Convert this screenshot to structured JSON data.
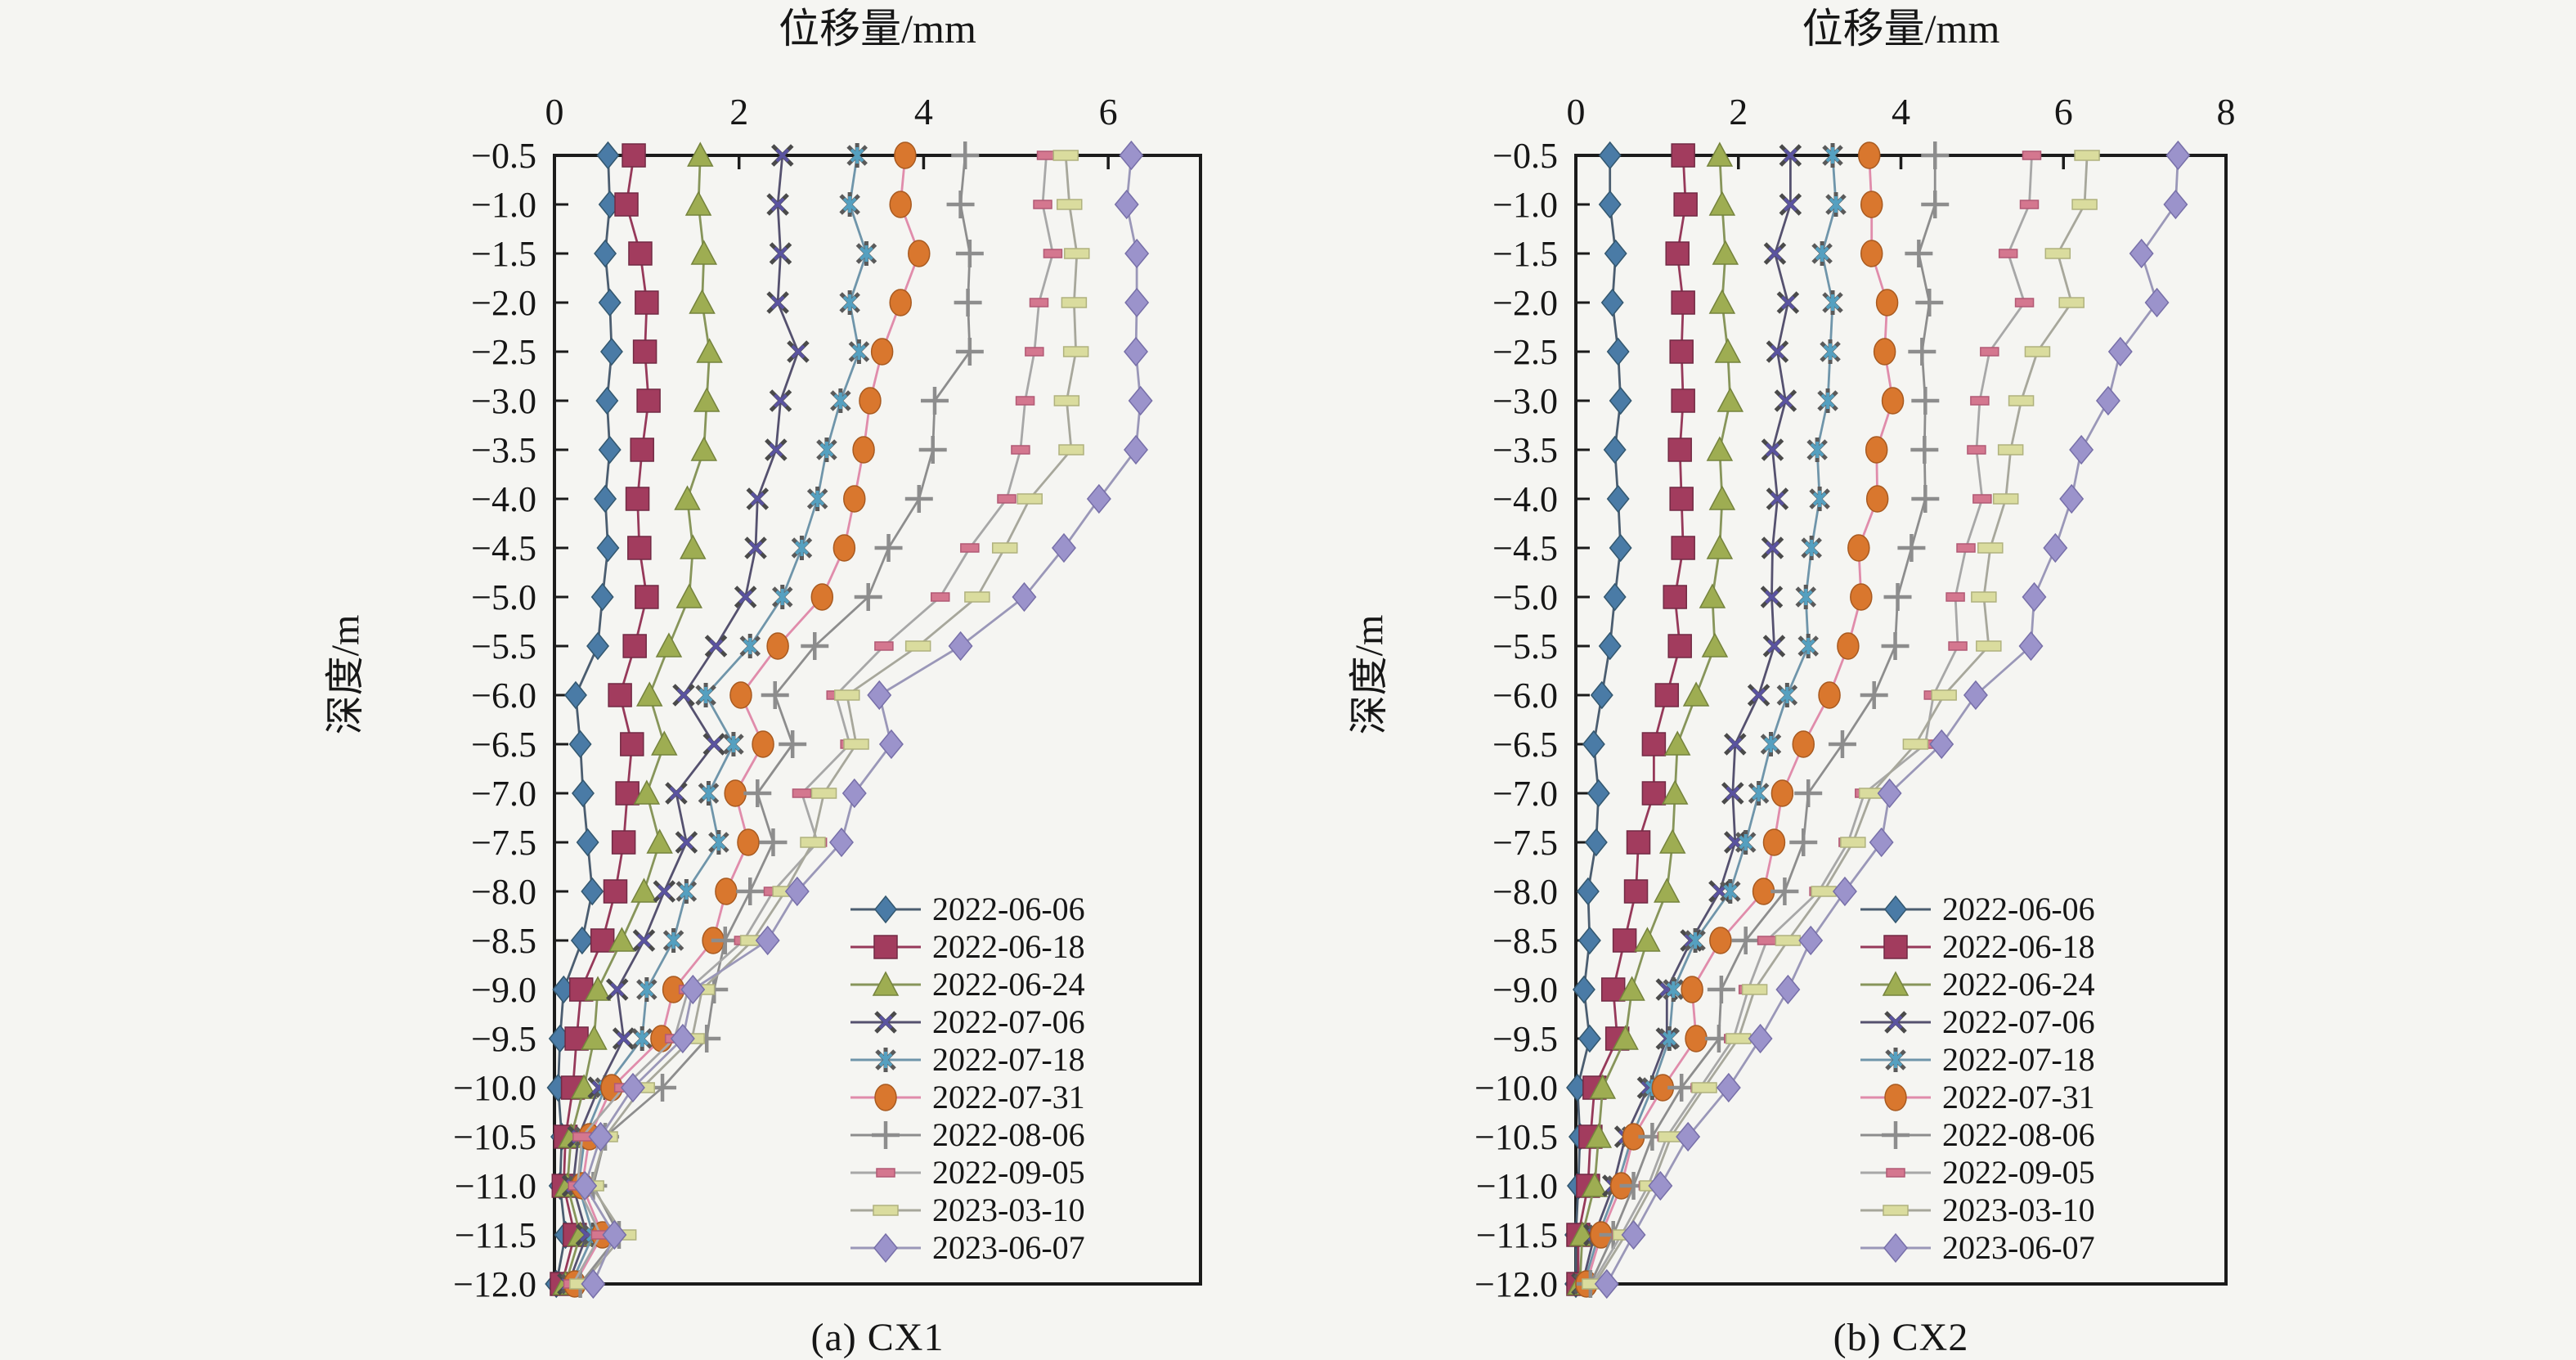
{
  "page": {
    "background": "#f5f5f2",
    "text_color": "#161616",
    "axis_color": "#1b1b1b"
  },
  "chart_data": [
    {
      "id": "cx1",
      "type": "line",
      "caption": "(a) CX1",
      "xlabel": "位移量/mm",
      "ylabel": "深度/m",
      "xlim": [
        0,
        7
      ],
      "x_ticks": [
        0,
        2,
        4,
        6
      ],
      "ylim": [
        -12.0,
        -0.5
      ],
      "grid": false,
      "legend_position": "inside-bottom-right",
      "depths": [
        -0.5,
        -1.0,
        -1.5,
        -2.0,
        -2.5,
        -3.0,
        -3.5,
        -4.0,
        -4.5,
        -5.0,
        -5.5,
        -6.0,
        -6.5,
        -7.0,
        -7.5,
        -8.0,
        -8.5,
        -9.0,
        -9.5,
        -10.0,
        -10.5,
        -11.0,
        -11.5,
        -12.0
      ],
      "series": [
        {
          "name": "2022-06-06",
          "marker": "diamond",
          "color": "#4a7ba6",
          "edge": "#33576f",
          "line": "#4b5d70",
          "values": [
            0.58,
            0.6,
            0.55,
            0.6,
            0.62,
            0.57,
            0.6,
            0.55,
            0.58,
            0.52,
            0.47,
            0.23,
            0.28,
            0.31,
            0.36,
            0.41,
            0.3,
            0.1,
            0.06,
            0.04,
            0.08,
            0.06,
            0.12,
            0.02
          ]
        },
        {
          "name": "2022-06-18",
          "marker": "square",
          "color": "#a23c5e",
          "edge": "#722a44",
          "line": "#96395a",
          "values": [
            0.86,
            0.78,
            0.93,
            1.0,
            0.98,
            1.02,
            0.95,
            0.9,
            0.92,
            1.0,
            0.87,
            0.71,
            0.84,
            0.79,
            0.75,
            0.66,
            0.52,
            0.29,
            0.24,
            0.2,
            0.12,
            0.1,
            0.22,
            0.08
          ]
        },
        {
          "name": "2022-06-24",
          "marker": "triangle",
          "color": "#9ead52",
          "edge": "#75833d",
          "line": "#87955a",
          "values": [
            1.58,
            1.56,
            1.62,
            1.6,
            1.68,
            1.65,
            1.62,
            1.44,
            1.5,
            1.46,
            1.24,
            1.03,
            1.19,
            1.0,
            1.14,
            0.97,
            0.73,
            0.47,
            0.43,
            0.32,
            0.18,
            0.14,
            0.28,
            0.12
          ]
        },
        {
          "name": "2022-07-06",
          "marker": "xmark",
          "color": "#5a53a0",
          "edge": "#444444",
          "line": "#55516f",
          "values": [
            2.47,
            2.42,
            2.45,
            2.42,
            2.64,
            2.45,
            2.4,
            2.2,
            2.18,
            2.07,
            1.75,
            1.4,
            1.73,
            1.32,
            1.43,
            1.19,
            0.97,
            0.68,
            0.75,
            0.48,
            0.26,
            0.2,
            0.35,
            0.15
          ]
        },
        {
          "name": "2022-07-18",
          "marker": "asterisk",
          "color": "#55a0c0",
          "edge": "#555555",
          "line": "#6f95aa",
          "values": [
            3.28,
            3.2,
            3.38,
            3.2,
            3.3,
            3.1,
            2.95,
            2.85,
            2.68,
            2.47,
            2.12,
            1.64,
            1.94,
            1.67,
            1.78,
            1.43,
            1.29,
            1.0,
            0.95,
            0.55,
            0.33,
            0.26,
            0.42,
            0.18
          ]
        },
        {
          "name": "2022-07-31",
          "marker": "circle",
          "color": "#d9772e",
          "edge": "#a85a20",
          "line": "#e08cab",
          "values": [
            3.8,
            3.75,
            3.95,
            3.75,
            3.55,
            3.42,
            3.35,
            3.25,
            3.14,
            2.9,
            2.42,
            2.02,
            2.26,
            1.96,
            2.1,
            1.86,
            1.72,
            1.29,
            1.16,
            0.62,
            0.38,
            0.3,
            0.52,
            0.22
          ]
        },
        {
          "name": "2022-08-06",
          "marker": "plus",
          "color": "#8d8d8d",
          "edge": "#777777",
          "line": "#8d8d8d",
          "values": [
            4.45,
            4.4,
            4.5,
            4.48,
            4.5,
            4.12,
            4.1,
            3.95,
            3.62,
            3.4,
            2.82,
            2.39,
            2.58,
            2.2,
            2.37,
            2.12,
            1.85,
            1.73,
            1.65,
            1.17,
            0.55,
            0.42,
            0.7,
            0.28
          ]
        },
        {
          "name": "2022-09-05",
          "marker": "dash-small",
          "color": "#d4778f",
          "edge": "#b25a75",
          "line": "#a7a7a7",
          "values": [
            5.33,
            5.29,
            5.4,
            5.25,
            5.2,
            5.1,
            5.05,
            4.9,
            4.5,
            4.18,
            3.57,
            3.05,
            3.2,
            2.68,
            2.85,
            2.37,
            2.05,
            1.45,
            1.3,
            0.75,
            0.3,
            0.25,
            0.5,
            0.2
          ]
        },
        {
          "name": "2023-03-10",
          "marker": "dash-large",
          "color": "#dadc9e",
          "edge": "#b0b27e",
          "line": "#a7a79b",
          "values": [
            5.54,
            5.58,
            5.66,
            5.63,
            5.65,
            5.55,
            5.6,
            5.15,
            4.88,
            4.58,
            3.94,
            3.17,
            3.27,
            2.92,
            2.8,
            2.5,
            2.15,
            1.6,
            1.49,
            0.95,
            0.55,
            0.4,
            0.75,
            0.3
          ]
        },
        {
          "name": "2023-06-07",
          "marker": "diamond-lg",
          "color": "#9b93cb",
          "edge": "#776fa8",
          "line": "#9a97b8",
          "values": [
            6.25,
            6.2,
            6.31,
            6.31,
            6.3,
            6.35,
            6.3,
            5.9,
            5.52,
            5.09,
            4.4,
            3.52,
            3.65,
            3.25,
            3.11,
            2.63,
            2.31,
            1.5,
            1.39,
            0.85,
            0.5,
            0.33,
            0.65,
            0.42
          ]
        }
      ]
    },
    {
      "id": "cx2",
      "type": "line",
      "caption": "(b) CX2",
      "xlabel": "位移量/mm",
      "ylabel": "深度/m",
      "xlim": [
        0,
        8
      ],
      "x_ticks": [
        0,
        2,
        4,
        6,
        8
      ],
      "ylim": [
        -12.0,
        -0.5
      ],
      "grid": false,
      "legend_position": "inside-bottom-right",
      "depths": [
        -0.5,
        -1.0,
        -1.5,
        -2.0,
        -2.5,
        -3.0,
        -3.5,
        -4.0,
        -4.5,
        -5.0,
        -5.5,
        -6.0,
        -6.5,
        -7.0,
        -7.5,
        -8.0,
        -8.5,
        -9.0,
        -9.5,
        -10.0,
        -10.5,
        -11.0,
        -11.5,
        -12.0
      ],
      "series": [
        {
          "name": "2022-06-06",
          "marker": "diamond",
          "color": "#4a7ba6",
          "edge": "#33576f",
          "line": "#4b5d70",
          "values": [
            0.42,
            0.42,
            0.49,
            0.45,
            0.52,
            0.55,
            0.48,
            0.52,
            0.55,
            0.48,
            0.42,
            0.32,
            0.22,
            0.28,
            0.25,
            0.15,
            0.17,
            0.1,
            0.17,
            0.02,
            0.05,
            0.03,
            0.0,
            0.0
          ]
        },
        {
          "name": "2022-06-18",
          "marker": "square",
          "color": "#a23c5e",
          "edge": "#722a44",
          "line": "#96395a",
          "values": [
            1.32,
            1.35,
            1.25,
            1.32,
            1.3,
            1.32,
            1.28,
            1.3,
            1.32,
            1.22,
            1.28,
            1.12,
            0.96,
            0.96,
            0.77,
            0.74,
            0.6,
            0.46,
            0.51,
            0.23,
            0.18,
            0.15,
            0.03,
            0.03
          ]
        },
        {
          "name": "2022-06-24",
          "marker": "triangle",
          "color": "#9ead52",
          "edge": "#75833d",
          "line": "#87955a",
          "values": [
            1.77,
            1.8,
            1.84,
            1.8,
            1.87,
            1.9,
            1.77,
            1.8,
            1.77,
            1.68,
            1.71,
            1.48,
            1.25,
            1.22,
            1.19,
            1.12,
            0.88,
            0.69,
            0.61,
            0.33,
            0.28,
            0.23,
            0.08,
            0.05
          ]
        },
        {
          "name": "2022-07-06",
          "marker": "xmark",
          "color": "#5a53a0",
          "edge": "#444444",
          "line": "#55516f",
          "values": [
            2.64,
            2.64,
            2.45,
            2.61,
            2.48,
            2.58,
            2.42,
            2.48,
            2.42,
            2.41,
            2.44,
            2.25,
            1.96,
            1.93,
            1.96,
            1.77,
            1.42,
            1.12,
            1.12,
            0.89,
            0.61,
            0.46,
            0.23,
            0.08
          ]
        },
        {
          "name": "2022-07-18",
          "marker": "asterisk",
          "color": "#55a0c0",
          "edge": "#555555",
          "line": "#6f95aa",
          "values": [
            3.16,
            3.2,
            3.03,
            3.16,
            3.13,
            3.1,
            2.97,
            3.0,
            2.9,
            2.83,
            2.86,
            2.6,
            2.4,
            2.25,
            2.09,
            1.9,
            1.47,
            1.2,
            1.15,
            0.94,
            0.69,
            0.51,
            0.28,
            0.1
          ]
        },
        {
          "name": "2022-07-31",
          "marker": "circle",
          "color": "#d9772e",
          "edge": "#a85a20",
          "line": "#e08cab",
          "values": [
            3.61,
            3.64,
            3.64,
            3.83,
            3.8,
            3.9,
            3.7,
            3.71,
            3.48,
            3.51,
            3.35,
            3.12,
            2.8,
            2.54,
            2.44,
            2.31,
            1.78,
            1.43,
            1.48,
            1.07,
            0.71,
            0.56,
            0.31,
            0.13
          ]
        },
        {
          "name": "2022-08-06",
          "marker": "plus",
          "color": "#8d8d8d",
          "edge": "#777777",
          "line": "#8d8d8d",
          "values": [
            4.42,
            4.42,
            4.22,
            4.35,
            4.26,
            4.3,
            4.29,
            4.3,
            4.13,
            3.96,
            3.93,
            3.67,
            3.28,
            2.86,
            2.8,
            2.57,
            2.09,
            1.79,
            1.76,
            1.3,
            0.94,
            0.71,
            0.46,
            0.18
          ]
        },
        {
          "name": "2022-09-05",
          "marker": "dash-small",
          "color": "#d4778f",
          "edge": "#b25a75",
          "line": "#a7a7a7",
          "values": [
            5.61,
            5.58,
            5.32,
            5.52,
            5.09,
            4.97,
            4.93,
            5.0,
            4.8,
            4.67,
            4.7,
            4.4,
            4.3,
            3.55,
            3.35,
            2.99,
            2.35,
            2.12,
            1.94,
            1.53,
            1.12,
            0.89,
            0.56,
            0.2
          ]
        },
        {
          "name": "2023-03-10",
          "marker": "dash-large",
          "color": "#dadc9e",
          "edge": "#b0b27e",
          "line": "#a7a79b",
          "values": [
            6.29,
            6.26,
            5.93,
            6.1,
            5.68,
            5.48,
            5.35,
            5.29,
            5.1,
            5.02,
            5.08,
            4.53,
            4.18,
            3.64,
            3.41,
            3.05,
            2.61,
            2.2,
            2.0,
            1.58,
            1.17,
            0.94,
            0.61,
            0.23
          ]
        },
        {
          "name": "2023-06-07",
          "marker": "diamond-lg",
          "color": "#9b93cb",
          "edge": "#776fa8",
          "line": "#9a97b8",
          "values": [
            7.41,
            7.38,
            6.96,
            7.15,
            6.7,
            6.55,
            6.22,
            6.1,
            5.9,
            5.64,
            5.6,
            4.92,
            4.5,
            3.86,
            3.76,
            3.31,
            2.89,
            2.61,
            2.27,
            1.88,
            1.38,
            1.04,
            0.71,
            0.38
          ]
        }
      ]
    }
  ]
}
